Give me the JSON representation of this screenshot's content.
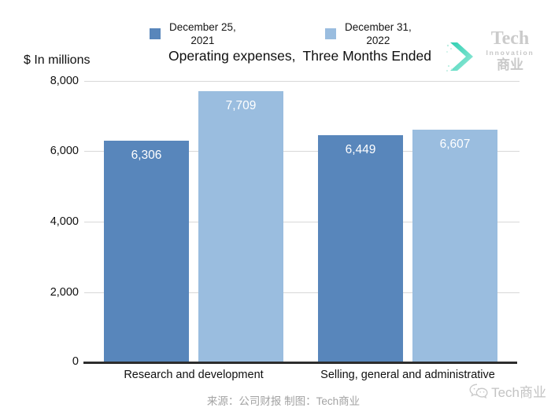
{
  "header": {
    "ylabel": "$ In millions",
    "title_part1": "Operating expenses,",
    "title_part2": "Three Months Ended"
  },
  "legend": {
    "items": [
      {
        "line1": "December 25,",
        "line2": "2021",
        "color": "#5886bb"
      },
      {
        "line1": "December 31,",
        "line2": "2022",
        "color": "#9abddf"
      }
    ]
  },
  "chart_data": {
    "type": "bar",
    "title": "Operating expenses, Three Months Ended",
    "ylabel": "$ In millions",
    "categories": [
      "Research and development",
      "Selling, general and administrative"
    ],
    "series": [
      {
        "name": "December 25, 2021",
        "color": "#5886bb",
        "values": [
          6306,
          6449
        ]
      },
      {
        "name": "December 31, 2022",
        "color": "#9abddf",
        "values": [
          7709,
          6607
        ]
      }
    ],
    "bar_labels": [
      "6,306",
      "7,709",
      "6,449",
      "6,607"
    ],
    "ylim": [
      0,
      8000
    ],
    "yticks": [
      "8,000",
      "6,000",
      "4,000",
      "2,000",
      "0"
    ],
    "grid": true,
    "legend_position": "top"
  },
  "logo": {
    "line1": "Tech",
    "line2": "Innovation",
    "line3": "商业",
    "accent": "#3ed3b8"
  },
  "footer": {
    "source": "来源：公司财报 制图：Tech商业",
    "watermark": "Tech商业"
  }
}
